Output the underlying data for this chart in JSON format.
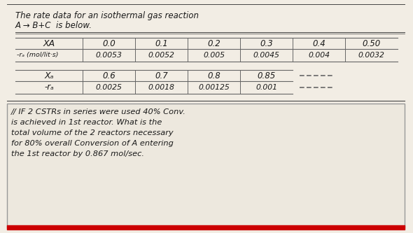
{
  "bg_color": "#f2ede4",
  "title_line1": "The rate data for an isothermal gas reaction",
  "title_line2": "A → B+C  is below.",
  "table1": {
    "row1_label": "XA",
    "row1_values": [
      "0.0",
      "0.1",
      "0.2",
      "0.3",
      "0.4",
      "0.50"
    ],
    "row2_label": "-rₐ (mol/lit·s)",
    "row2_values": [
      "0.0053",
      "0.0052",
      "0.005",
      "0.0045",
      "0.004",
      "0.0032"
    ]
  },
  "table2": {
    "row1_label": "Xₐ",
    "row1_values": [
      "0.6",
      "0.7",
      "0.8",
      "0.85"
    ],
    "row2_label": "-rₐ",
    "row2_values": [
      "0.0025",
      "0.0018",
      "0.00125",
      "0.001"
    ]
  },
  "problem_text": [
    "// IF 2 CSTRs in series were used 40% Conv.",
    "is achieved in 1st reactor. What is the",
    "total volume of the 2 reactors necessary",
    "for 80% overall Conversion of A entering",
    "the 1st reactor by 0.867 mol/sec."
  ],
  "underline_color": "#cc0000",
  "text_color": "#1a1a1a",
  "line_color": "#666666",
  "title_line_color": "#444444"
}
